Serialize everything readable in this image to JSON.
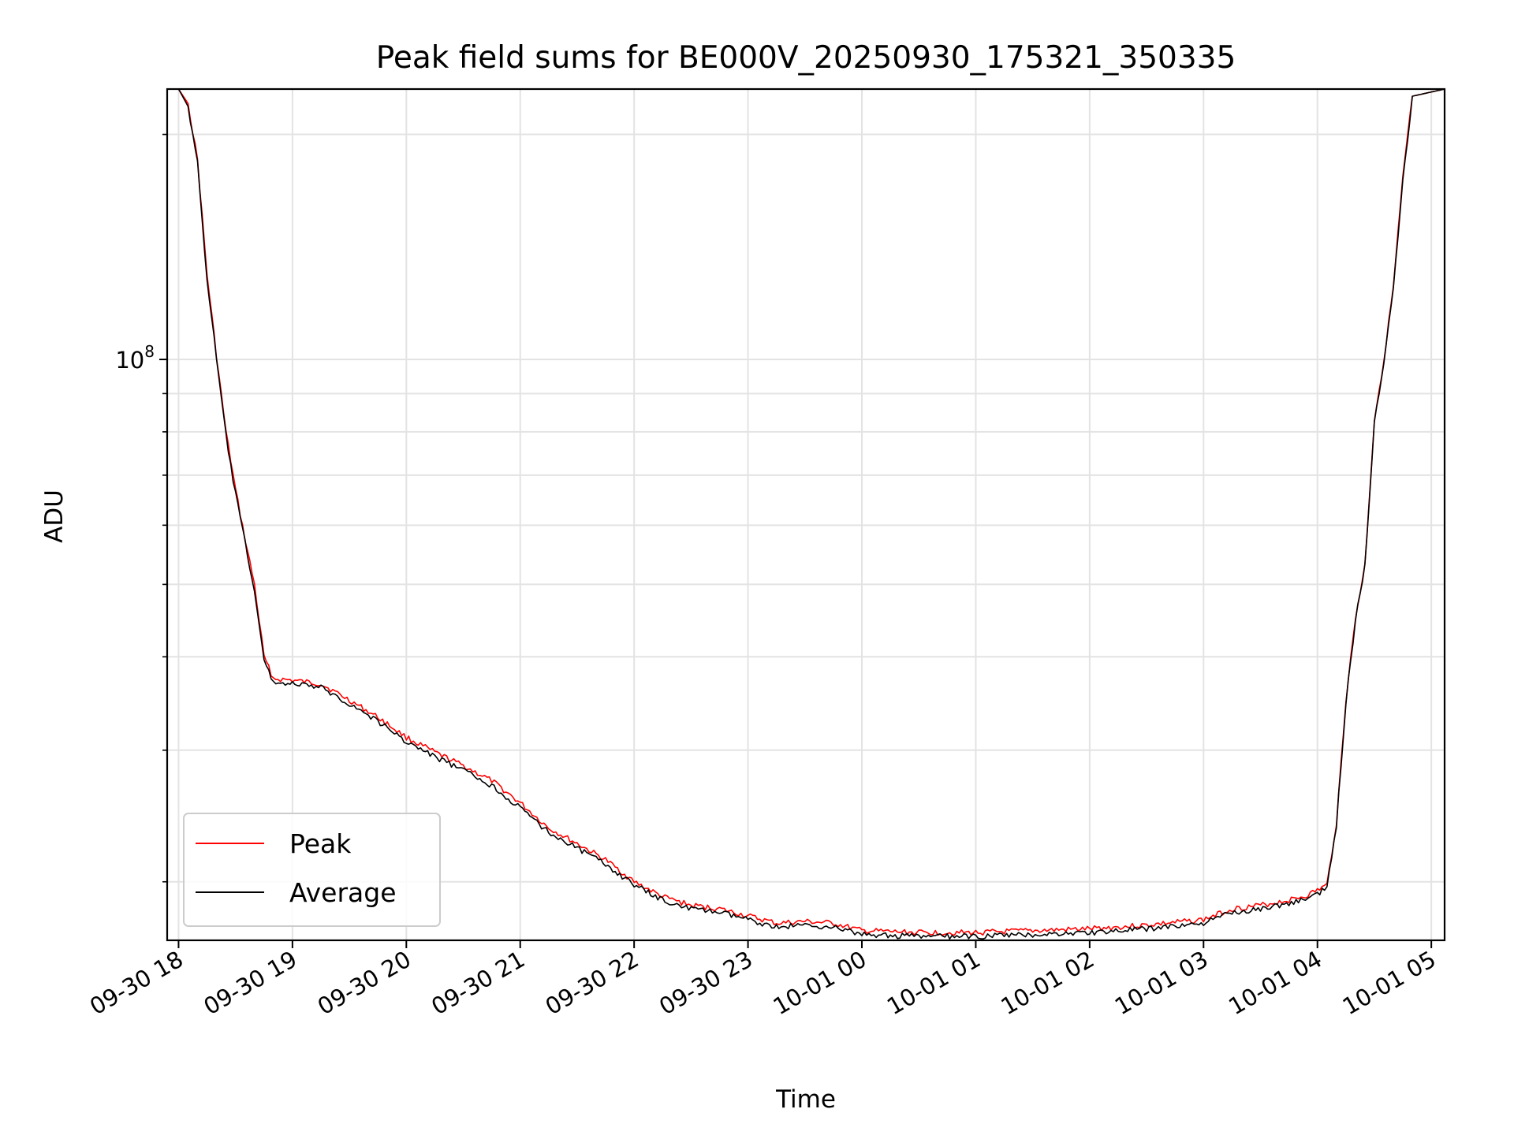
{
  "chart_data": {
    "type": "line",
    "title": "Peak field sums for BE000V_20250930_175321_350335",
    "xlabel": "Time",
    "ylabel": "ADU",
    "y_scale": "log",
    "grid": true,
    "legend_position": "lower-left",
    "xlim": [
      "2025-09-30 17:54",
      "2025-10-01 05:07"
    ],
    "ylim": [
      16700000,
      230000000
    ],
    "x_ticks": [
      "09-30 18",
      "09-30 19",
      "09-30 20",
      "09-30 21",
      "09-30 22",
      "09-30 23",
      "10-01 00",
      "10-01 01",
      "10-01 02",
      "10-01 03",
      "10-01 04",
      "10-01 05"
    ],
    "y_major_ticks": [
      {
        "value": 100000000,
        "base": "10",
        "exponent": "8"
      }
    ],
    "y_minor_ticks": [
      20000000,
      30000000,
      40000000,
      50000000,
      60000000,
      70000000,
      80000000,
      90000000,
      200000000
    ],
    "series": [
      {
        "name": "Peak",
        "color": "#ff0000",
        "x": [
          "2025-09-30 17:54",
          "2025-09-30 18:00",
          "2025-09-30 18:05",
          "2025-09-30 18:10",
          "2025-09-30 18:15",
          "2025-09-30 18:20",
          "2025-09-30 18:25",
          "2025-09-30 18:30",
          "2025-09-30 18:35",
          "2025-09-30 18:40",
          "2025-09-30 18:45",
          "2025-09-30 18:50",
          "2025-09-30 19:00",
          "2025-09-30 19:15",
          "2025-09-30 19:30",
          "2025-09-30 19:45",
          "2025-09-30 20:00",
          "2025-09-30 20:15",
          "2025-09-30 20:30",
          "2025-09-30 20:45",
          "2025-09-30 21:00",
          "2025-09-30 21:15",
          "2025-09-30 21:30",
          "2025-09-30 21:45",
          "2025-09-30 22:00",
          "2025-09-30 22:15",
          "2025-09-30 22:30",
          "2025-09-30 22:45",
          "2025-09-30 23:00",
          "2025-09-30 23:15",
          "2025-09-30 23:30",
          "2025-09-30 23:45",
          "2025-10-01 00:00",
          "2025-10-01 00:30",
          "2025-10-01 01:00",
          "2025-10-01 01:30",
          "2025-10-01 02:00",
          "2025-10-01 02:30",
          "2025-10-01 03:00",
          "2025-10-01 03:15",
          "2025-10-01 03:30",
          "2025-10-01 03:45",
          "2025-10-01 03:55",
          "2025-10-01 04:00",
          "2025-10-01 04:05",
          "2025-10-01 04:10",
          "2025-10-01 04:15",
          "2025-10-01 04:20",
          "2025-10-01 04:25",
          "2025-10-01 04:30",
          "2025-10-01 04:35",
          "2025-10-01 04:40",
          "2025-10-01 04:45",
          "2025-10-01 04:50",
          "2025-10-01 05:07"
        ],
        "values": [
          230000000,
          230000000,
          220000000,
          185000000,
          130000000,
          101000000,
          80000000,
          67000000,
          57500000,
          50000000,
          40000000,
          37400000,
          37200000,
          36800000,
          35000000,
          33200000,
          31200000,
          29800000,
          28600000,
          27300000,
          25500000,
          23600000,
          22500000,
          21400000,
          20000000,
          19100000,
          18600000,
          18400000,
          18000000,
          17600000,
          17700000,
          17600000,
          17200000,
          17100000,
          17100000,
          17200000,
          17300000,
          17500000,
          17800000,
          18400000,
          18600000,
          18900000,
          19200000,
          19500000,
          19800000,
          24000000,
          35000000,
          45000000,
          53000000,
          83000000,
          100000000,
          125000000,
          175000000,
          225000000,
          230000000
        ]
      },
      {
        "name": "Average",
        "color": "#000000",
        "x": [
          "2025-09-30 17:54",
          "2025-09-30 18:00",
          "2025-09-30 18:05",
          "2025-09-30 18:10",
          "2025-09-30 18:15",
          "2025-09-30 18:20",
          "2025-09-30 18:25",
          "2025-09-30 18:30",
          "2025-09-30 18:35",
          "2025-09-30 18:40",
          "2025-09-30 18:45",
          "2025-09-30 18:50",
          "2025-09-30 19:00",
          "2025-09-30 19:15",
          "2025-09-30 19:30",
          "2025-09-30 19:45",
          "2025-09-30 20:00",
          "2025-09-30 20:15",
          "2025-09-30 20:30",
          "2025-09-30 20:45",
          "2025-09-30 21:00",
          "2025-09-30 21:15",
          "2025-09-30 21:30",
          "2025-09-30 21:45",
          "2025-09-30 22:00",
          "2025-09-30 22:15",
          "2025-09-30 22:30",
          "2025-09-30 22:45",
          "2025-09-30 23:00",
          "2025-09-30 23:15",
          "2025-09-30 23:30",
          "2025-09-30 23:45",
          "2025-10-01 00:00",
          "2025-10-01 00:30",
          "2025-10-01 01:00",
          "2025-10-01 01:30",
          "2025-10-01 02:00",
          "2025-10-01 02:30",
          "2025-10-01 03:00",
          "2025-10-01 03:15",
          "2025-10-01 03:30",
          "2025-10-01 03:45",
          "2025-10-01 03:55",
          "2025-10-01 04:00",
          "2025-10-01 04:05",
          "2025-10-01 04:10",
          "2025-10-01 04:15",
          "2025-10-01 04:20",
          "2025-10-01 04:25",
          "2025-10-01 04:30",
          "2025-10-01 04:35",
          "2025-10-01 04:40",
          "2025-10-01 04:45",
          "2025-10-01 04:50",
          "2025-10-01 05:07"
        ],
        "values": [
          230000000,
          230000000,
          218000000,
          183000000,
          128000000,
          100000000,
          79000000,
          66000000,
          57000000,
          49000000,
          39500000,
          37000000,
          36800000,
          36400000,
          34600000,
          32800000,
          30800000,
          29400000,
          28200000,
          26900000,
          25100000,
          23300000,
          22200000,
          21100000,
          19800000,
          18900000,
          18400000,
          18200000,
          17800000,
          17400000,
          17500000,
          17400000,
          17000000,
          16900000,
          16900000,
          17000000,
          17100000,
          17300000,
          17600000,
          18200000,
          18400000,
          18700000,
          19000000,
          19300000,
          19600000,
          23800000,
          34800000,
          44800000,
          52800000,
          82500000,
          99500000,
          124500000,
          174000000,
          225000000,
          230000000
        ]
      }
    ]
  }
}
